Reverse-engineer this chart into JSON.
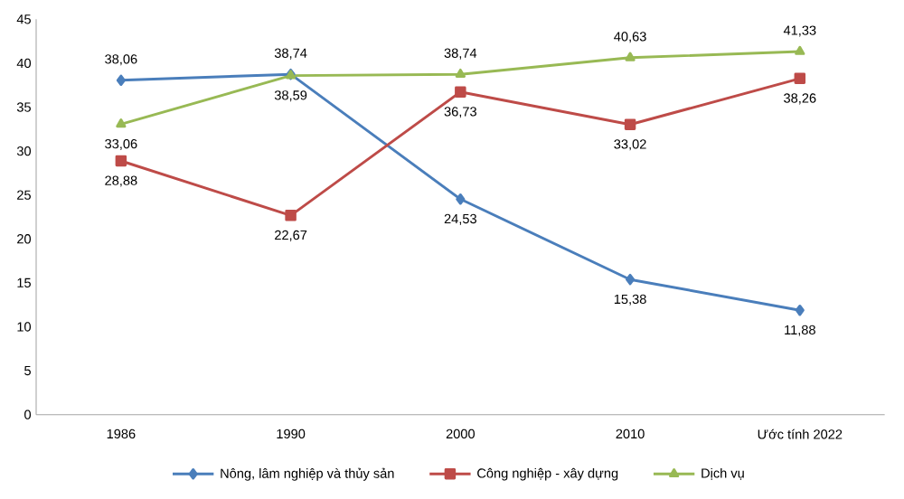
{
  "chart_data": {
    "type": "line",
    "categories": [
      "1986",
      "1990",
      "2000",
      "2010",
      "Ước tính 2022"
    ],
    "series": [
      {
        "name": "Nông, lâm nghiệp và thủy sản",
        "color": "#4a7ebb",
        "marker": "diamond",
        "values": [
          38.06,
          38.74,
          24.53,
          15.38,
          11.88
        ],
        "value_labels": [
          "38,06",
          "38,74",
          "24,53",
          "15,38",
          "11,88"
        ]
      },
      {
        "name": "Công nghiệp - xây dựng",
        "color": "#be4b48",
        "marker": "square",
        "values": [
          28.88,
          22.67,
          36.73,
          33.02,
          38.26
        ],
        "value_labels": [
          "28,88",
          "22,67",
          "36,73",
          "33,02",
          "38,26"
        ]
      },
      {
        "name": "Dịch vụ",
        "color": "#98b954",
        "marker": "triangle",
        "values": [
          33.06,
          38.59,
          38.74,
          40.63,
          41.33
        ],
        "value_labels": [
          "33,06",
          "38,59",
          "38,74",
          "40,63",
          "41,33"
        ]
      }
    ],
    "ylim": [
      0,
      45
    ],
    "yticks": [
      0,
      5,
      10,
      15,
      20,
      25,
      30,
      35,
      40,
      45
    ],
    "grid": false,
    "legend": "bottom",
    "line_style": "solid"
  }
}
